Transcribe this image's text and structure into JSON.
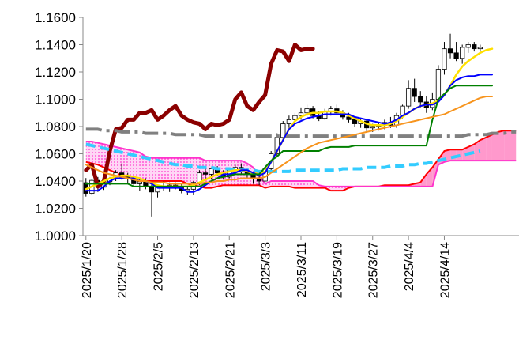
{
  "chart_data": {
    "type": "line",
    "title": "",
    "xlabel": "",
    "ylabel": "",
    "ylim": [
      1.0,
      1.16
    ],
    "y_ticks": [
      "1.0000",
      "1.0200",
      "1.0400",
      "1.0600",
      "1.0800",
      "1.1000",
      "1.1200",
      "1.1400",
      "1.1600"
    ],
    "y_tick_values": [
      1.0,
      1.02,
      1.04,
      1.06,
      1.08,
      1.1,
      1.12,
      1.14,
      1.16
    ],
    "x_ticks": [
      "2025/1/20",
      "2025/1/28",
      "2025/2/5",
      "2025/2/13",
      "2025/2/21",
      "2025/3/3",
      "2025/3/11",
      "2025/3/19",
      "2025/3/27",
      "2025/4/4",
      "2025/4/14"
    ],
    "x_tick_index": [
      0,
      6,
      12,
      18,
      24,
      30,
      36,
      42,
      48,
      54,
      60
    ],
    "n_points": 73,
    "grid": false,
    "legend": "none",
    "colors": {
      "candle_up": "#ffffff",
      "candle_down": "#000000",
      "dark_red": "#8b0000",
      "yellow": "#ffe000",
      "blue": "#0000ff",
      "green": "#008000",
      "orange": "#f7941d",
      "red": "#ff0000",
      "magenta": "#ff33cc",
      "cloud_bullish": "#ff99cc",
      "cloud_bearish": "#ff99ff",
      "cyan_dash": "#33ccff",
      "gray_dashdot": "#808080"
    },
    "candles": [
      [
        1.0388,
        1.0422,
        1.0286,
        1.031
      ],
      [
        1.031,
        1.0415,
        1.03,
        1.0405
      ],
      [
        1.0405,
        1.043,
        1.032,
        1.0355
      ],
      [
        1.0355,
        1.041,
        1.0335,
        1.0395
      ],
      [
        1.0395,
        1.043,
        1.037,
        1.0415
      ],
      [
        1.0415,
        1.048,
        1.04,
        1.046
      ],
      [
        1.046,
        1.053,
        1.041,
        1.043
      ],
      [
        1.043,
        1.046,
        1.038,
        1.042
      ],
      [
        1.042,
        1.044,
        1.036,
        1.038
      ],
      [
        1.038,
        1.042,
        1.033,
        1.0395
      ],
      [
        1.0395,
        1.042,
        1.034,
        1.036
      ],
      [
        1.036,
        1.038,
        1.014,
        1.032
      ],
      [
        1.032,
        1.037,
        1.028,
        1.036
      ],
      [
        1.036,
        1.04,
        1.033,
        1.035
      ],
      [
        1.035,
        1.039,
        1.032,
        1.037
      ],
      [
        1.037,
        1.039,
        1.034,
        1.036
      ],
      [
        1.036,
        1.038,
        1.031,
        1.033
      ],
      [
        1.033,
        1.036,
        1.03,
        1.034
      ],
      [
        1.034,
        1.04,
        1.03,
        1.039
      ],
      [
        1.039,
        1.048,
        1.037,
        1.046
      ],
      [
        1.046,
        1.05,
        1.041,
        1.045
      ],
      [
        1.045,
        1.05,
        1.041,
        1.049
      ],
      [
        1.049,
        1.051,
        1.044,
        1.046
      ],
      [
        1.046,
        1.048,
        1.041,
        1.043
      ],
      [
        1.043,
        1.05,
        1.042,
        1.048
      ],
      [
        1.048,
        1.052,
        1.046,
        1.05
      ],
      [
        1.05,
        1.053,
        1.045,
        1.047
      ],
      [
        1.047,
        1.049,
        1.042,
        1.045
      ],
      [
        1.045,
        1.047,
        1.038,
        1.042
      ],
      [
        1.042,
        1.046,
        1.037,
        1.04
      ],
      [
        1.04,
        1.052,
        1.039,
        1.049
      ],
      [
        1.049,
        1.062,
        1.048,
        1.06
      ],
      [
        1.06,
        1.075,
        1.058,
        1.072
      ],
      [
        1.072,
        1.084,
        1.07,
        1.082
      ],
      [
        1.082,
        1.088,
        1.078,
        1.085
      ],
      [
        1.085,
        1.09,
        1.082,
        1.088
      ],
      [
        1.088,
        1.094,
        1.085,
        1.09
      ],
      [
        1.09,
        1.096,
        1.087,
        1.093
      ],
      [
        1.093,
        1.095,
        1.086,
        1.088
      ],
      [
        1.088,
        1.091,
        1.084,
        1.086
      ],
      [
        1.086,
        1.093,
        1.085,
        1.091
      ],
      [
        1.091,
        1.095,
        1.088,
        1.093
      ],
      [
        1.093,
        1.096,
        1.089,
        1.09
      ],
      [
        1.09,
        1.092,
        1.085,
        1.087
      ],
      [
        1.087,
        1.09,
        1.083,
        1.085
      ],
      [
        1.085,
        1.087,
        1.08,
        1.082
      ],
      [
        1.082,
        1.086,
        1.079,
        1.084
      ],
      [
        1.084,
        1.085,
        1.076,
        1.079
      ],
      [
        1.079,
        1.082,
        1.076,
        1.08
      ],
      [
        1.08,
        1.083,
        1.077,
        1.081
      ],
      [
        1.081,
        1.085,
        1.078,
        1.083
      ],
      [
        1.083,
        1.087,
        1.079,
        1.081
      ],
      [
        1.081,
        1.09,
        1.079,
        1.088
      ],
      [
        1.088,
        1.096,
        1.086,
        1.095
      ],
      [
        1.095,
        1.114,
        1.093,
        1.108
      ],
      [
        1.108,
        1.115,
        1.098,
        1.102
      ],
      [
        1.102,
        1.106,
        1.094,
        1.098
      ],
      [
        1.098,
        1.102,
        1.09,
        1.094
      ],
      [
        1.094,
        1.105,
        1.092,
        1.1
      ],
      [
        1.1,
        1.125,
        1.098,
        1.122
      ],
      [
        1.122,
        1.142,
        1.118,
        1.137
      ],
      [
        1.137,
        1.148,
        1.13,
        1.134
      ],
      [
        1.134,
        1.142,
        1.128,
        1.13
      ],
      [
        1.13,
        1.14,
        1.126,
        1.138
      ],
      [
        1.138,
        1.142,
        1.134,
        1.14
      ],
      [
        1.14,
        1.142,
        1.135,
        1.137
      ],
      [
        1.137,
        1.14,
        1.135,
        1.138
      ]
    ],
    "series": [
      {
        "color": "dark_red",
        "width": 5,
        "dash": "",
        "values": [
          1.048,
          1.052,
          1.036,
          1.04,
          1.062,
          1.078,
          1.079,
          1.085,
          1.085,
          1.09,
          1.09,
          1.092,
          1.085,
          1.088,
          1.092,
          1.095,
          1.088,
          1.085,
          1.083,
          1.082,
          1.078,
          1.082,
          1.081,
          1.082,
          1.085,
          1.1,
          1.105,
          1.095,
          1.092,
          1.098,
          1.103,
          1.126,
          1.136,
          1.135,
          1.128,
          1.14,
          1.136,
          1.137,
          1.137,
          null,
          null,
          null,
          null,
          null,
          null,
          null,
          null,
          null,
          null,
          null,
          null,
          null,
          null,
          null,
          null,
          null,
          null,
          null,
          null,
          null,
          null,
          null,
          null,
          null,
          null,
          null,
          null,
          null,
          null,
          null,
          null,
          null,
          null
        ]
      },
      {
        "color": "gray_dashdot",
        "width": 4,
        "dash": "20,6,4,6",
        "values": [
          1.078,
          1.078,
          1.078,
          1.077,
          1.077,
          1.077,
          1.076,
          1.076,
          1.076,
          1.076,
          1.075,
          1.075,
          1.075,
          1.075,
          1.075,
          1.074,
          1.074,
          1.074,
          1.074,
          1.074,
          1.073,
          1.073,
          1.073,
          1.073,
          1.073,
          1.073,
          1.073,
          1.073,
          1.073,
          1.073,
          1.073,
          1.073,
          1.073,
          1.073,
          1.073,
          1.073,
          1.073,
          1.073,
          1.073,
          1.073,
          1.073,
          1.073,
          1.073,
          1.073,
          1.073,
          1.073,
          1.073,
          1.073,
          1.073,
          1.073,
          1.073,
          1.073,
          1.073,
          1.073,
          1.073,
          1.073,
          1.073,
          1.073,
          1.073,
          1.073,
          1.073,
          1.073,
          1.073,
          1.073,
          1.074,
          1.074,
          1.074,
          1.074,
          1.075,
          1.075,
          1.075,
          1.076,
          1.076
        ]
      },
      {
        "color": "cyan_dash",
        "width": 4,
        "dash": "12,6",
        "values": [
          1.067,
          1.066,
          1.065,
          1.064,
          1.063,
          1.062,
          1.061,
          1.06,
          1.059,
          1.058,
          1.057,
          1.056,
          1.055,
          1.054,
          1.053,
          1.052,
          1.052,
          1.051,
          1.051,
          1.05,
          1.05,
          1.05,
          1.049,
          1.049,
          1.049,
          1.048,
          1.048,
          1.048,
          1.048,
          1.047,
          1.047,
          1.047,
          1.047,
          1.047,
          1.047,
          1.048,
          1.048,
          1.048,
          1.048,
          1.048,
          1.048,
          1.048,
          1.048,
          1.049,
          1.049,
          1.049,
          1.049,
          1.05,
          1.05,
          1.05,
          1.05,
          1.051,
          1.051,
          1.051,
          1.052,
          1.052,
          1.053,
          1.053,
          1.054,
          1.055,
          1.056,
          1.057,
          1.058,
          1.059,
          1.06,
          1.061,
          1.062,
          null,
          null,
          null,
          null,
          null,
          null
        ]
      },
      {
        "color": "yellow",
        "width": 2.5,
        "dash": "",
        "values": [
          1.034,
          1.036,
          1.038,
          1.04,
          1.042,
          1.043,
          1.044,
          1.044,
          1.043,
          1.042,
          1.04,
          1.038,
          1.037,
          1.036,
          1.036,
          1.036,
          1.036,
          1.036,
          1.037,
          1.039,
          1.041,
          1.043,
          1.045,
          1.046,
          1.047,
          1.048,
          1.048,
          1.047,
          1.046,
          1.045,
          1.047,
          1.054,
          1.062,
          1.07,
          1.078,
          1.084,
          1.087,
          1.089,
          1.09,
          1.09,
          1.091,
          1.091,
          1.091,
          1.09,
          1.088,
          1.086,
          1.084,
          1.082,
          1.081,
          1.081,
          1.081,
          1.082,
          1.084,
          1.087,
          1.09,
          1.093,
          1.095,
          1.096,
          1.097,
          1.099,
          1.103,
          1.11,
          1.118,
          1.124,
          1.128,
          1.131,
          1.134,
          1.136,
          1.137,
          null,
          null,
          null,
          null
        ]
      },
      {
        "color": "blue",
        "width": 2,
        "dash": "",
        "values": [
          1.033,
          1.033,
          1.033,
          1.036,
          1.04,
          1.042,
          1.042,
          1.042,
          1.042,
          1.04,
          1.04,
          1.038,
          1.035,
          1.035,
          1.035,
          1.035,
          1.035,
          1.032,
          1.032,
          1.034,
          1.037,
          1.04,
          1.042,
          1.045,
          1.045,
          1.046,
          1.048,
          1.048,
          1.046,
          1.044,
          1.046,
          1.054,
          1.062,
          1.07,
          1.078,
          1.082,
          1.084,
          1.086,
          1.087,
          1.088,
          1.089,
          1.089,
          1.089,
          1.089,
          1.089,
          1.087,
          1.086,
          1.085,
          1.084,
          1.083,
          1.082,
          1.083,
          1.085,
          1.088,
          1.09,
          1.093,
          1.095,
          1.096,
          1.096,
          1.098,
          1.103,
          1.11,
          1.114,
          1.116,
          1.117,
          1.117,
          1.118,
          1.118,
          1.118,
          null,
          null,
          null,
          null
        ]
      },
      {
        "color": "green",
        "width": 2,
        "dash": "",
        "values": [
          1.038,
          1.038,
          1.038,
          1.038,
          1.038,
          1.038,
          1.038,
          1.038,
          1.036,
          1.036,
          1.036,
          1.036,
          1.036,
          1.036,
          1.036,
          1.036,
          1.036,
          1.036,
          1.036,
          1.036,
          1.038,
          1.04,
          1.042,
          1.043,
          1.044,
          1.045,
          1.045,
          1.045,
          1.045,
          1.045,
          1.05,
          1.055,
          1.058,
          1.062,
          1.062,
          1.062,
          1.062,
          1.062,
          1.062,
          1.062,
          1.064,
          1.065,
          1.065,
          1.065,
          1.065,
          1.066,
          1.066,
          1.066,
          1.066,
          1.066,
          1.066,
          1.066,
          1.066,
          1.066,
          1.066,
          1.066,
          1.066,
          1.066,
          1.085,
          1.1,
          1.104,
          1.108,
          1.11,
          1.11,
          1.11,
          1.11,
          1.11,
          1.11,
          1.11,
          null,
          null,
          null,
          null
        ]
      },
      {
        "color": "orange",
        "width": 2,
        "dash": "",
        "values": [
          1.052,
          1.05,
          1.048,
          1.046,
          1.045,
          1.044,
          1.043,
          1.042,
          1.041,
          1.04,
          1.04,
          1.039,
          1.039,
          1.039,
          1.038,
          1.038,
          1.038,
          1.038,
          1.038,
          1.038,
          1.039,
          1.039,
          1.04,
          1.04,
          1.041,
          1.041,
          1.042,
          1.042,
          1.042,
          1.042,
          1.043,
          1.046,
          1.049,
          1.052,
          1.055,
          1.058,
          1.061,
          1.064,
          1.066,
          1.068,
          1.069,
          1.07,
          1.071,
          1.072,
          1.073,
          1.074,
          1.075,
          1.076,
          1.077,
          1.078,
          1.079,
          1.08,
          1.081,
          1.082,
          1.083,
          1.084,
          1.085,
          1.086,
          1.087,
          1.088,
          1.089,
          1.091,
          1.093,
          1.095,
          1.097,
          1.099,
          1.101,
          1.102,
          1.102,
          null,
          null,
          null,
          null
        ]
      }
    ],
    "cloud": {
      "span_a": {
        "color": "red",
        "values": [
          1.054,
          1.053,
          1.052,
          1.05,
          1.048,
          1.046,
          1.044,
          1.042,
          1.041,
          1.04,
          1.04,
          1.04,
          1.04,
          1.04,
          1.04,
          1.04,
          1.04,
          1.038,
          1.037,
          1.036,
          1.035,
          1.035,
          1.036,
          1.037,
          1.037,
          1.037,
          1.037,
          1.037,
          1.037,
          1.037,
          1.035,
          1.036,
          1.036,
          1.036,
          1.036,
          1.035,
          1.035,
          1.035,
          1.035,
          1.035,
          1.035,
          1.033,
          1.033,
          1.033,
          1.035,
          1.036,
          1.036,
          1.036,
          1.036,
          1.036,
          1.037,
          1.037,
          1.037,
          1.037,
          1.037,
          1.038,
          1.039,
          1.045,
          1.05,
          1.056,
          1.062,
          1.063,
          1.063,
          1.063,
          1.065,
          1.067,
          1.07,
          1.072,
          1.074,
          1.076,
          1.077,
          1.077,
          1.077
        ]
      },
      "span_b": {
        "color": "magenta",
        "values": [
          1.069,
          1.069,
          1.068,
          1.067,
          1.066,
          1.065,
          1.064,
          1.063,
          1.062,
          1.061,
          1.058,
          1.057,
          1.057,
          1.057,
          1.057,
          1.057,
          1.057,
          1.057,
          1.057,
          1.057,
          1.055,
          1.055,
          1.055,
          1.055,
          1.055,
          1.055,
          1.055,
          1.053,
          1.05,
          1.044,
          1.038,
          1.04,
          1.04,
          1.04,
          1.04,
          1.04,
          1.04,
          1.04,
          1.04,
          1.037,
          1.036,
          1.036,
          1.036,
          1.036,
          1.036,
          1.036,
          1.036,
          1.036,
          1.036,
          1.036,
          1.036,
          1.036,
          1.036,
          1.036,
          1.036,
          1.036,
          1.036,
          1.036,
          1.036,
          1.052,
          1.054,
          1.055,
          1.055,
          1.055,
          1.055,
          1.055,
          1.055,
          1.055,
          1.055,
          1.055,
          1.055,
          1.055,
          1.055
        ]
      }
    }
  }
}
